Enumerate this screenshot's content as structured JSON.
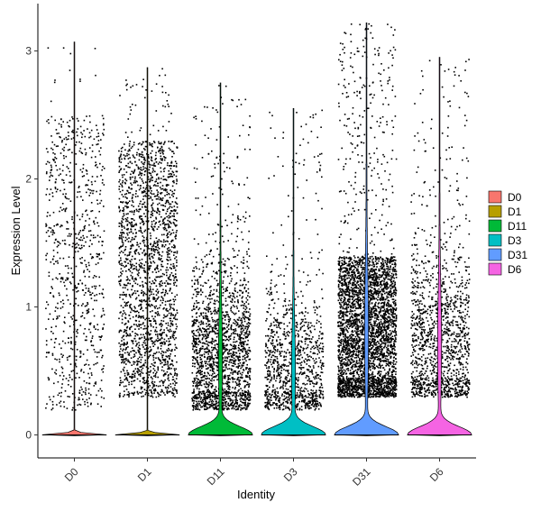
{
  "chart_data": {
    "type": "violin",
    "title": "",
    "xlabel": "Identity",
    "ylabel": "Expression Level",
    "ylim": [
      -0.18,
      3.37
    ],
    "yticks": [
      0,
      1,
      2,
      3
    ],
    "grid": false,
    "legend_position": "right",
    "jitter_points": true,
    "categories": [
      "D0",
      "D1",
      "D11",
      "D3",
      "D31",
      "D6"
    ],
    "series": [
      {
        "name": "D0",
        "color": "#F8766D",
        "n_points": 800,
        "max": 3.07,
        "median": 0.0,
        "nonzero_range": [
          0.2,
          2.5
        ],
        "nonzero_mode": null
      },
      {
        "name": "D1",
        "color": "#B79F00",
        "n_points": 2100,
        "max": 2.87,
        "median": 0.0,
        "nonzero_range": [
          0.3,
          2.3
        ],
        "nonzero_mode": null
      },
      {
        "name": "D11",
        "color": "#00BA38",
        "n_points": 1900,
        "max": 2.75,
        "median": 0.0,
        "nonzero_range": [
          0.2,
          1.6
        ],
        "nonzero_mode": 0.6
      },
      {
        "name": "D3",
        "color": "#00BFC4",
        "n_points": 1100,
        "max": 2.55,
        "median": 0.0,
        "nonzero_range": [
          0.2,
          2.0
        ],
        "nonzero_mode": 0.5
      },
      {
        "name": "D31",
        "color": "#619CFF",
        "n_points": 3800,
        "max": 3.22,
        "median": 0.0,
        "nonzero_range": [
          0.3,
          1.4
        ],
        "nonzero_mode": 0.8
      },
      {
        "name": "D6",
        "color": "#F564E3",
        "n_points": 1400,
        "max": 2.95,
        "median": 0.0,
        "nonzero_range": [
          0.3,
          2.0
        ],
        "nonzero_mode": 0.7
      }
    ]
  }
}
